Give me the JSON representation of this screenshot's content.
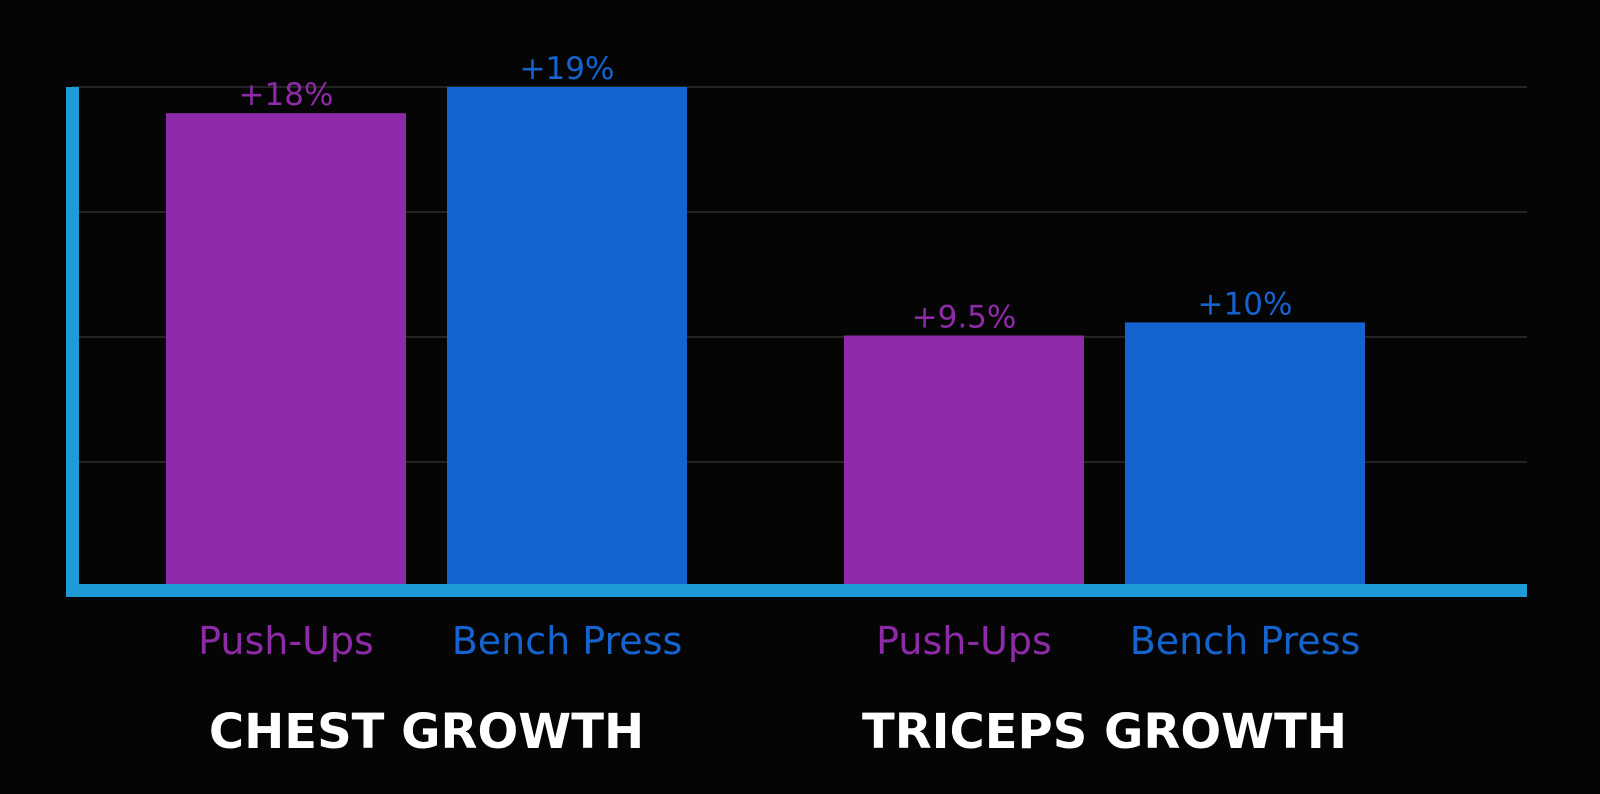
{
  "chart_data": {
    "type": "bar",
    "groups": [
      {
        "title": "CHEST GROWTH",
        "bars": [
          {
            "label": "Push-Ups",
            "value": 18,
            "value_label": "+18%",
            "color": "#8e2aa8"
          },
          {
            "label": "Bench Press",
            "value": 19,
            "value_label": "+19%",
            "color": "#1563cf"
          }
        ]
      },
      {
        "title": "TRICEPS GROWTH",
        "bars": [
          {
            "label": "Push-Ups",
            "value": 9.5,
            "value_label": "+9.5%",
            "color": "#8e2aa8"
          },
          {
            "label": "Bench Press",
            "value": 10,
            "value_label": "+10%",
            "color": "#1563cf"
          }
        ]
      }
    ],
    "ylim": [
      0,
      19
    ],
    "grid": true,
    "colors": {
      "background": "#050505",
      "axis": "#1e9bd7",
      "grid": "#2e2e2e",
      "group_title": "#ffffff",
      "push_ups_label": "#8e2aa8",
      "bench_press_label": "#1563cf"
    }
  }
}
